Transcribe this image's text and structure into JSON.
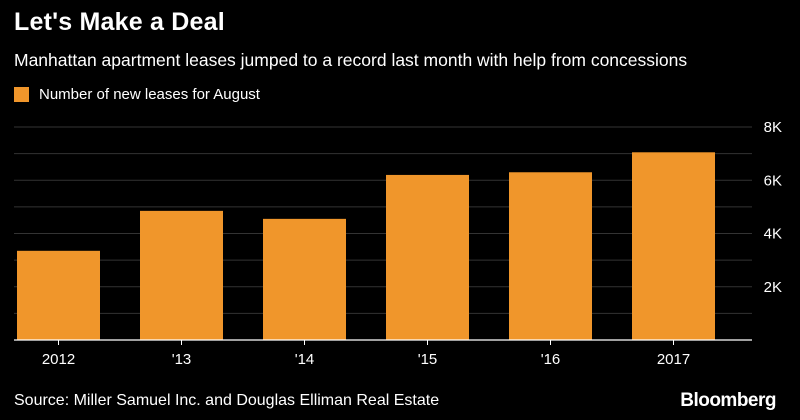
{
  "chart_data": {
    "type": "bar",
    "title": "Let's Make a Deal",
    "subtitle": "Manhattan apartment leases jumped to a record last month with help from concessions",
    "legend": [
      {
        "name": "Number of new leases for August",
        "color": "#f0962b"
      }
    ],
    "legend_position": "top-left",
    "categories": [
      "2012",
      "'13",
      "'14",
      "'15",
      "'16",
      "2017"
    ],
    "series": [
      {
        "name": "Number of new leases for August",
        "values": [
          3350,
          4850,
          4550,
          6200,
          6300,
          7050
        ]
      }
    ],
    "ylim": [
      0,
      8000
    ],
    "yticks": [
      2000,
      4000,
      6000,
      8000
    ],
    "ytick_labels": [
      "2K",
      "4K",
      "6K",
      "8K"
    ],
    "y_axis_side": "right",
    "grid": true,
    "colors": {
      "bar": "#f0962b",
      "background": "#000000",
      "grid": "#333333",
      "axis": "#ffffff"
    }
  },
  "source": "Source: Miller Samuel Inc. and Douglas Elliman Real Estate",
  "brand": "Bloomberg"
}
